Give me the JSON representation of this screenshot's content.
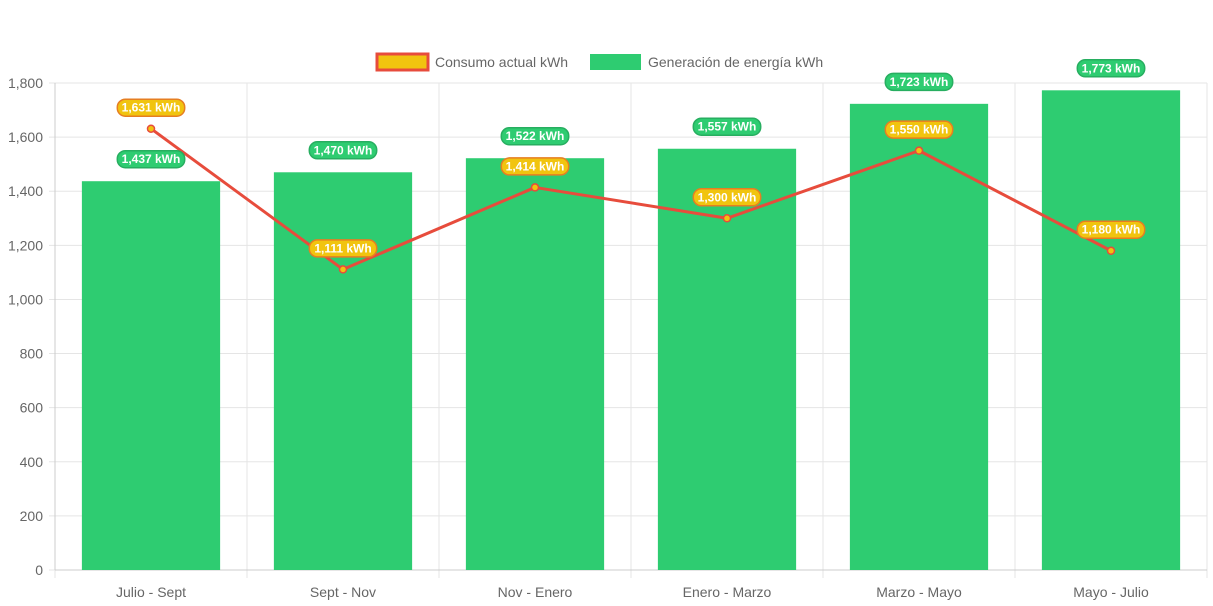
{
  "chart_data": {
    "type": "bar",
    "categories": [
      "Julio - Sept",
      "Sept - Nov",
      "Nov - Enero",
      "Enero - Marzo",
      "Marzo - Mayo",
      "Mayo - Julio"
    ],
    "series": [
      {
        "name": "Consumo actual kWh",
        "type": "line",
        "values": [
          1631,
          1111,
          1414,
          1300,
          1550,
          1180
        ],
        "data_labels": [
          "1,631 kWh",
          "1,111 kWh",
          "1,414 kWh",
          "1,300 kWh",
          "1,550 kWh",
          "1,180 kWh"
        ],
        "line_color": "#e74c3c",
        "point_fill": "#f1c40f",
        "label_fill": "#f1c40f",
        "label_border": "#e67e22"
      },
      {
        "name": "Generación de energía kWh",
        "type": "bar",
        "values": [
          1437,
          1470,
          1522,
          1557,
          1723,
          1773
        ],
        "data_labels": [
          "1,437 kWh",
          "1,470 kWh",
          "1,522 kWh",
          "1,557 kWh",
          "1,723 kWh",
          "1,773 kWh"
        ],
        "bar_color": "#2ecc71",
        "label_fill": "#2ecc71",
        "label_border": "#27ae60"
      }
    ],
    "y_ticks": [
      "0",
      "200",
      "400",
      "600",
      "800",
      "1,000",
      "1,200",
      "1,400",
      "1,600",
      "1,800"
    ],
    "ylim": [
      0,
      1800
    ],
    "legend_position": "top",
    "grid": true,
    "title": "",
    "xlabel": "",
    "ylabel": ""
  }
}
